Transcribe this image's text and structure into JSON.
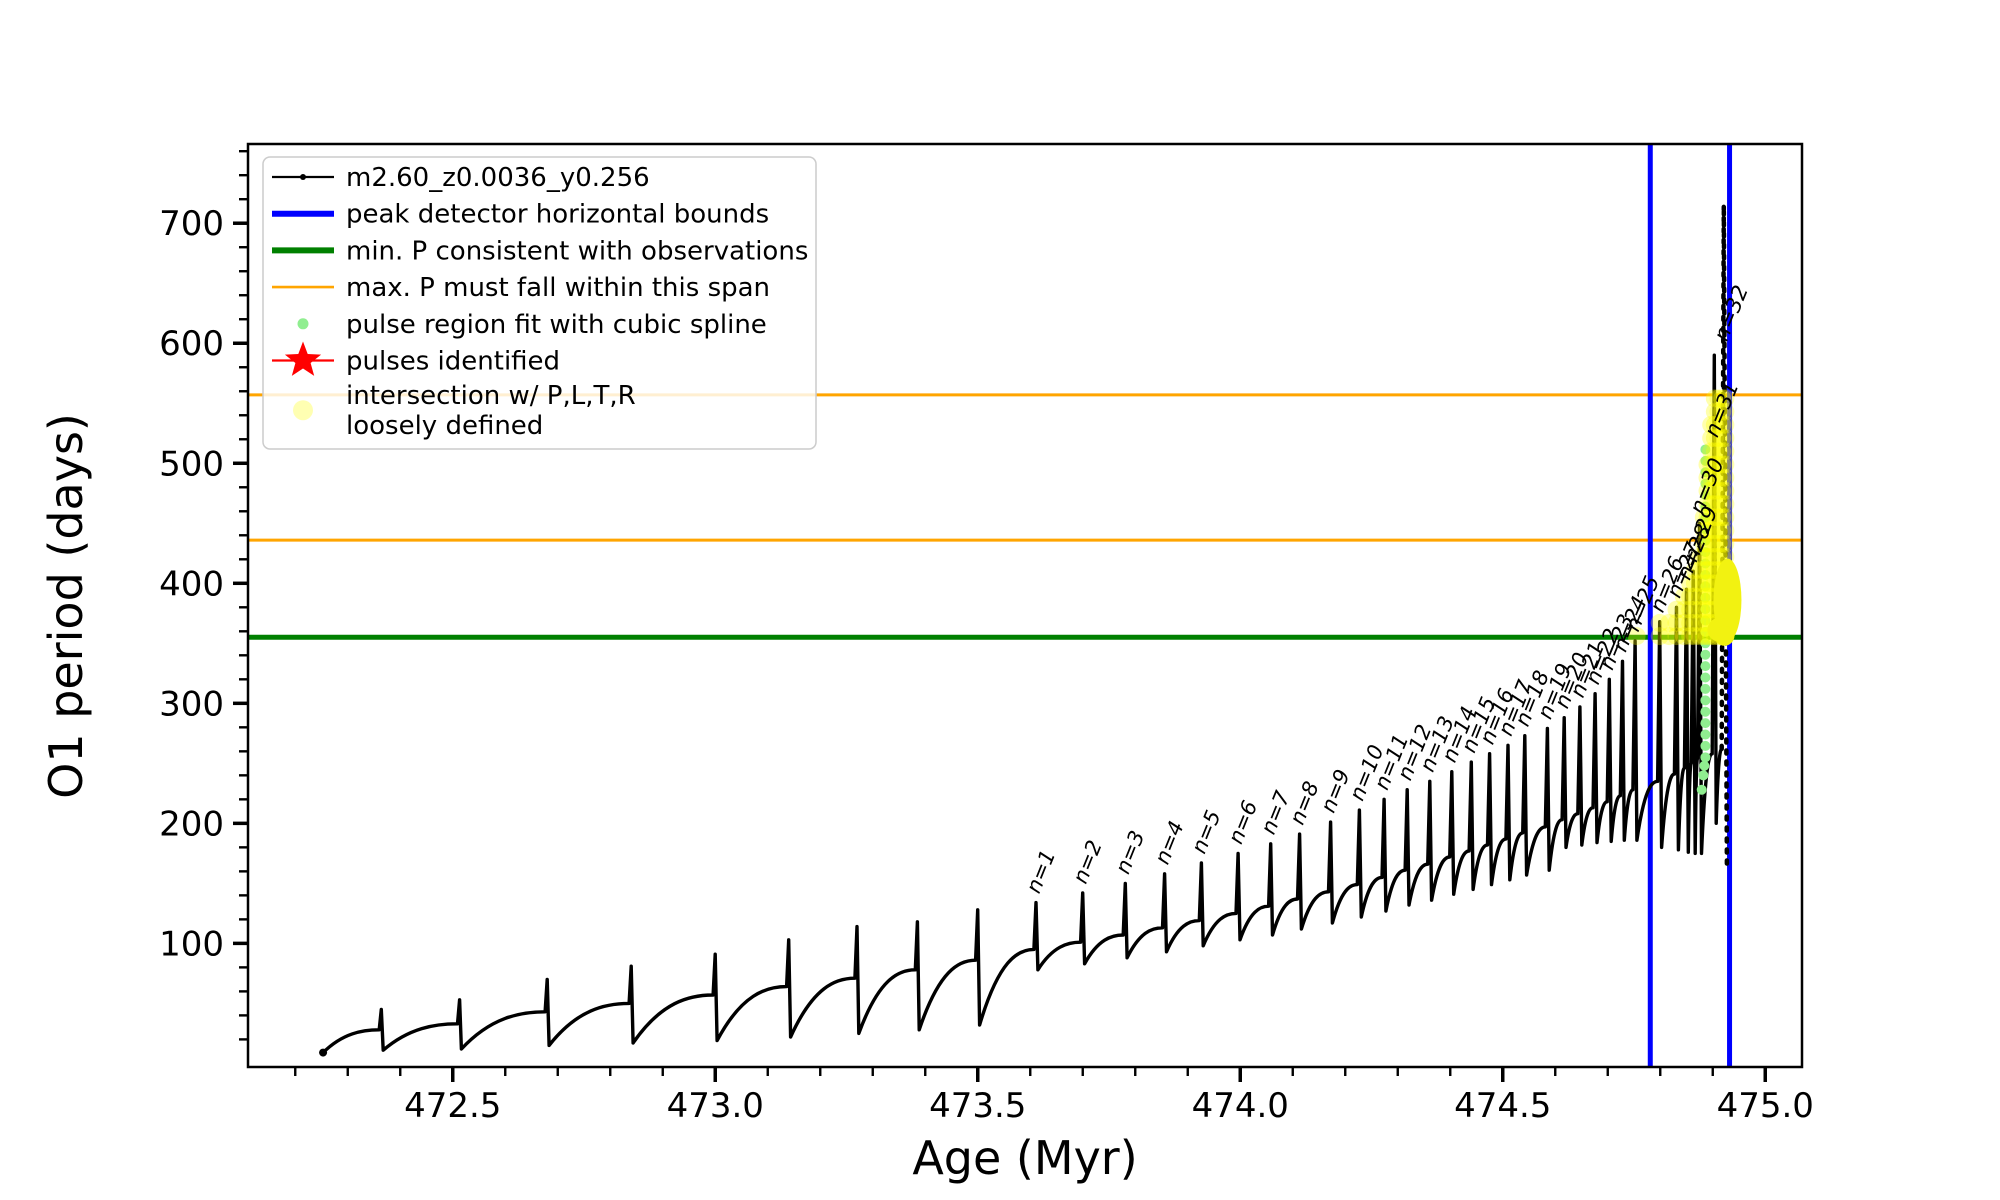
{
  "figure": {
    "background": "#ffffff",
    "xlabel": "Age (Myr)",
    "ylabel": "O1 period (days)"
  },
  "legend": {
    "entries": [
      {
        "label": "m2.60_z0.0036_y0.256",
        "marker": "line-dot",
        "color": "#000000"
      },
      {
        "label": "peak detector horizontal bounds",
        "marker": "thick-line",
        "color": "#0000ff"
      },
      {
        "label": "min. P consistent with observations",
        "marker": "thick-line",
        "color": "#008000"
      },
      {
        "label": "max. P must fall within this span",
        "marker": "line",
        "color": "#ffa500"
      },
      {
        "label": "pulse region fit with cubic spline",
        "marker": "dot",
        "color": "#90ee90"
      },
      {
        "label": "pulses identified",
        "marker": "star",
        "color": "#ff0000"
      },
      {
        "label": "intersection w/ P,L,T,R",
        "label2": "loosely defined",
        "marker": "big-dot",
        "color": "#ffff00"
      }
    ]
  },
  "chart_data": {
    "type": "line",
    "title": "",
    "xlabel": "Age (Myr)",
    "ylabel": "O1 period (days)",
    "xlim": [
      472.11,
      475.07
    ],
    "ylim": [
      -3,
      766
    ],
    "x_major_ticks": [
      472.5,
      473.0,
      473.5,
      474.0,
      474.5,
      475.0
    ],
    "x_minor_step": 0.1,
    "y_major_ticks": [
      100,
      200,
      300,
      400,
      500,
      600,
      700
    ],
    "y_minor_step": 20,
    "series_name": "m2.60_z0.0036_y0.256",
    "curve_color": "#000000",
    "track_start": {
      "t": 472.253,
      "p": 9
    },
    "unlabeled_pulses": [
      {
        "t": 472.364,
        "peak": 45,
        "base": 28,
        "dip": 11
      },
      {
        "t": 472.513,
        "peak": 53,
        "base": 33,
        "dip": 12
      },
      {
        "t": 472.68,
        "peak": 70,
        "base": 43,
        "dip": 15
      },
      {
        "t": 472.84,
        "peak": 81,
        "base": 50,
        "dip": 17
      },
      {
        "t": 473.0,
        "peak": 91,
        "base": 57,
        "dip": 19
      },
      {
        "t": 473.14,
        "peak": 103,
        "base": 64,
        "dip": 22
      },
      {
        "t": 473.27,
        "peak": 114,
        "base": 71,
        "dip": 25
      },
      {
        "t": 473.385,
        "peak": 118,
        "base": 78,
        "dip": 28
      },
      {
        "t": 473.5,
        "peak": 128,
        "base": 86,
        "dip": 32
      }
    ],
    "pulses": [
      {
        "n": 1,
        "t": 473.611,
        "peak": 134,
        "base": 95,
        "dip": 78
      },
      {
        "n": 2,
        "t": 473.7,
        "peak": 142,
        "base": 101,
        "dip": 83
      },
      {
        "n": 3,
        "t": 473.781,
        "peak": 150,
        "base": 107,
        "dip": 88
      },
      {
        "n": 4,
        "t": 473.856,
        "peak": 158,
        "base": 113,
        "dip": 93
      },
      {
        "n": 5,
        "t": 473.926,
        "peak": 167,
        "base": 119,
        "dip": 98
      },
      {
        "n": 6,
        "t": 473.996,
        "peak": 175,
        "base": 125,
        "dip": 103
      },
      {
        "n": 7,
        "t": 474.058,
        "peak": 183,
        "base": 131,
        "dip": 107
      },
      {
        "n": 8,
        "t": 474.113,
        "peak": 191,
        "base": 137,
        "dip": 112
      },
      {
        "n": 9,
        "t": 474.172,
        "peak": 201,
        "base": 143,
        "dip": 117
      },
      {
        "n": 10,
        "t": 474.227,
        "peak": 211,
        "base": 149,
        "dip": 122
      },
      {
        "n": 11,
        "t": 474.274,
        "peak": 220,
        "base": 155,
        "dip": 127
      },
      {
        "n": 12,
        "t": 474.318,
        "peak": 228,
        "base": 161,
        "dip": 132
      },
      {
        "n": 13,
        "t": 474.361,
        "peak": 235,
        "base": 166,
        "dip": 136
      },
      {
        "n": 14,
        "t": 474.403,
        "peak": 243,
        "base": 172,
        "dip": 141
      },
      {
        "n": 15,
        "t": 474.44,
        "peak": 251,
        "base": 177,
        "dip": 145
      },
      {
        "n": 16,
        "t": 474.475,
        "peak": 258,
        "base": 182,
        "dip": 149
      },
      {
        "n": 17,
        "t": 474.51,
        "peak": 265,
        "base": 187,
        "dip": 153
      },
      {
        "n": 18,
        "t": 474.542,
        "peak": 273,
        "base": 192,
        "dip": 157
      },
      {
        "n": 19,
        "t": 474.585,
        "peak": 279,
        "base": 197,
        "dip": 161
      },
      {
        "n": 20,
        "t": 474.617,
        "peak": 288,
        "base": 203,
        "dip": 180
      },
      {
        "n": 21,
        "t": 474.647,
        "peak": 297,
        "base": 208,
        "dip": 182
      },
      {
        "n": 22,
        "t": 474.676,
        "peak": 308,
        "base": 213,
        "dip": 184
      },
      {
        "n": 23,
        "t": 474.703,
        "peak": 320,
        "base": 218,
        "dip": 185
      },
      {
        "n": 24,
        "t": 474.728,
        "peak": 335,
        "base": 223,
        "dip": 186
      },
      {
        "n": 25,
        "t": 474.752,
        "peak": 352,
        "base": 228,
        "dip": 186
      },
      {
        "n": 26,
        "t": 474.799,
        "peak": 368,
        "base": 235,
        "dip": 180
      },
      {
        "n": 27,
        "t": 474.831,
        "peak": 380,
        "base": 241,
        "dip": 178
      },
      {
        "n": 28,
        "t": 474.85,
        "peak": 395,
        "base": 246,
        "dip": 176
      },
      {
        "n": 29,
        "t": 474.863,
        "peak": 410,
        "base": 250,
        "dip": 175
      },
      {
        "n": 30,
        "t": 474.875,
        "peak": 450,
        "base": 254,
        "dip": 175
      },
      {
        "n": 31,
        "t": 474.903,
        "peak": 590,
        "base": 258,
        "dip": 200,
        "label_p": 514
      },
      {
        "n": 32,
        "t": 474.921,
        "peak": 715,
        "base": 262,
        "dip": 250,
        "label_p": 594,
        "dotted": true
      }
    ],
    "final_drop": {
      "t": 474.927,
      "p": 165
    },
    "pulse_label_prefix": "n=",
    "peak_detector_bounds": {
      "t1": 474.781,
      "t2": 474.932,
      "color": "#0000ff"
    },
    "min_p_observed": {
      "p": 355,
      "color": "#008000"
    },
    "max_p_span": {
      "p_low": 436,
      "p_high": 557,
      "color": "#ffa500"
    },
    "spline_fit_dots": {
      "t": 474.886,
      "p_from": 255,
      "p_to": 518,
      "step": 9.5,
      "color": "#90ee90",
      "tail": [
        [
          474.879,
          228
        ],
        [
          474.882,
          240
        ],
        [
          474.884,
          248
        ]
      ]
    },
    "intersection_dots": {
      "p_bottom": 356,
      "step": 11,
      "radius": 9,
      "color": "#ffff00",
      "opacity": 0.32,
      "columns": [
        {
          "t": 474.755,
          "top": 364
        },
        {
          "t": 474.799,
          "top": 368
        },
        {
          "t": 474.817,
          "top": 376
        },
        {
          "t": 474.831,
          "top": 382
        },
        {
          "t": 474.845,
          "top": 394
        },
        {
          "t": 474.857,
          "top": 406
        },
        {
          "t": 474.866,
          "top": 418
        },
        {
          "t": 474.875,
          "top": 432
        },
        {
          "t": 474.883,
          "top": 462
        },
        {
          "t": 474.89,
          "top": 500
        },
        {
          "t": 474.897,
          "top": 538
        },
        {
          "t": 474.904,
          "top": 557
        },
        {
          "t": 474.911,
          "top": 557
        },
        {
          "t": 474.918,
          "top": 557
        },
        {
          "t": 474.924,
          "top": 557
        }
      ]
    },
    "intersection_blob": {
      "t": 474.928,
      "p_from": 358,
      "p_to": 414,
      "color": "#f2f211"
    }
  }
}
